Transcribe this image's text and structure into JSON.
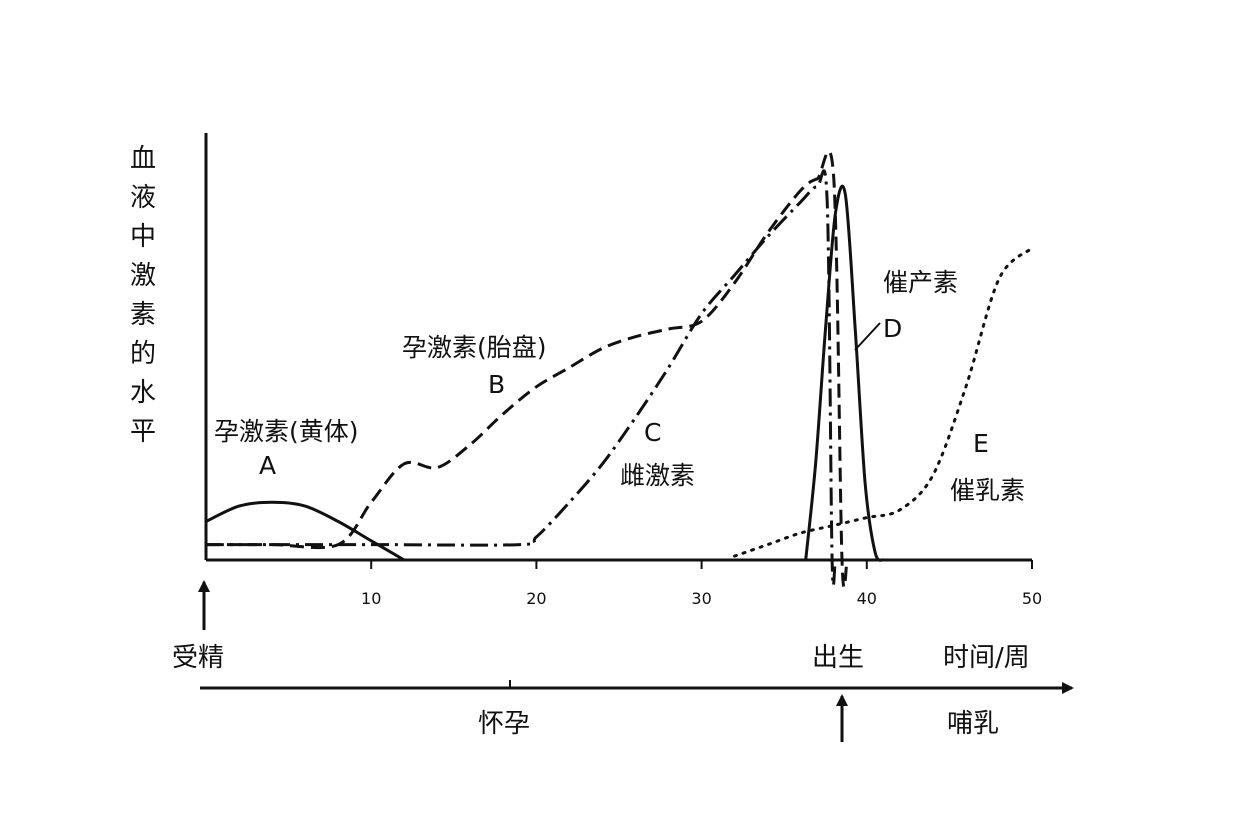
{
  "chart_data": {
    "type": "line",
    "ylabel": "血液中激素的水平",
    "xlabel": "时间/周",
    "x_ticks": [
      10,
      20,
      30,
      40,
      50
    ],
    "xlim": [
      0,
      50
    ],
    "ylim": [
      0,
      1
    ],
    "grid": false,
    "legend": "none",
    "series": [
      {
        "name": "孕激素(黄体)",
        "letter": "A",
        "style": "solid",
        "x": [
          0,
          2,
          4,
          6,
          8,
          10,
          12
        ],
        "y": [
          0.1,
          0.14,
          0.15,
          0.14,
          0.1,
          0.05,
          0.0
        ]
      },
      {
        "name": "孕激素(胎盘)",
        "letter": "B",
        "style": "dashed",
        "x": [
          0,
          4,
          8,
          10,
          12,
          14,
          16,
          18,
          20,
          22,
          24,
          26,
          28,
          30,
          32,
          34,
          36,
          37,
          38,
          38.5,
          38.8
        ],
        "y": [
          0.04,
          0.04,
          0.04,
          0.15,
          0.25,
          0.24,
          0.3,
          0.38,
          0.45,
          0.5,
          0.55,
          0.58,
          0.6,
          0.62,
          0.72,
          0.85,
          0.96,
          0.99,
          0.99,
          0.0,
          0.0
        ]
      },
      {
        "name": "雌激素",
        "letter": "C",
        "style": "dash-dot",
        "x": [
          0,
          10,
          19,
          20,
          22,
          24,
          26,
          28,
          30,
          32,
          34,
          36,
          37,
          37.6,
          37.9,
          38.1,
          38.3
        ],
        "y": [
          0.04,
          0.04,
          0.04,
          0.06,
          0.15,
          0.25,
          0.37,
          0.5,
          0.64,
          0.74,
          0.84,
          0.93,
          0.97,
          0.93,
          0.0,
          0.0,
          0.0
        ]
      },
      {
        "name": "催产素",
        "letter": "D",
        "style": "solid",
        "x": [
          36.3,
          36.9,
          37.5,
          38.1,
          38.7,
          39.3,
          39.9,
          40.5,
          41.0
        ],
        "y": [
          0.0,
          0.25,
          0.6,
          0.9,
          0.95,
          0.6,
          0.2,
          0.02,
          0.0
        ]
      },
      {
        "name": "催乳素",
        "letter": "E",
        "style": "dotted",
        "x": [
          32,
          34,
          36,
          38,
          40,
          42,
          44,
          46,
          48,
          50
        ],
        "y": [
          0.01,
          0.04,
          0.07,
          0.09,
          0.11,
          0.13,
          0.22,
          0.45,
          0.73,
          0.81
        ]
      }
    ]
  },
  "annotations": {
    "a_name": "孕激素(黄体)",
    "a_letter": "A",
    "b_name": "孕激素(胎盘)",
    "b_letter": "B",
    "c_letter": "C",
    "c_name": "雌激素",
    "d_name": "催产素",
    "d_letter": "D",
    "e_letter": "E",
    "e_name": "催乳素"
  },
  "timeline": {
    "fertilization": "受精",
    "pregnancy": "怀孕",
    "birth": "出生",
    "lactation": "哺乳",
    "time_unit": "时间/周"
  }
}
